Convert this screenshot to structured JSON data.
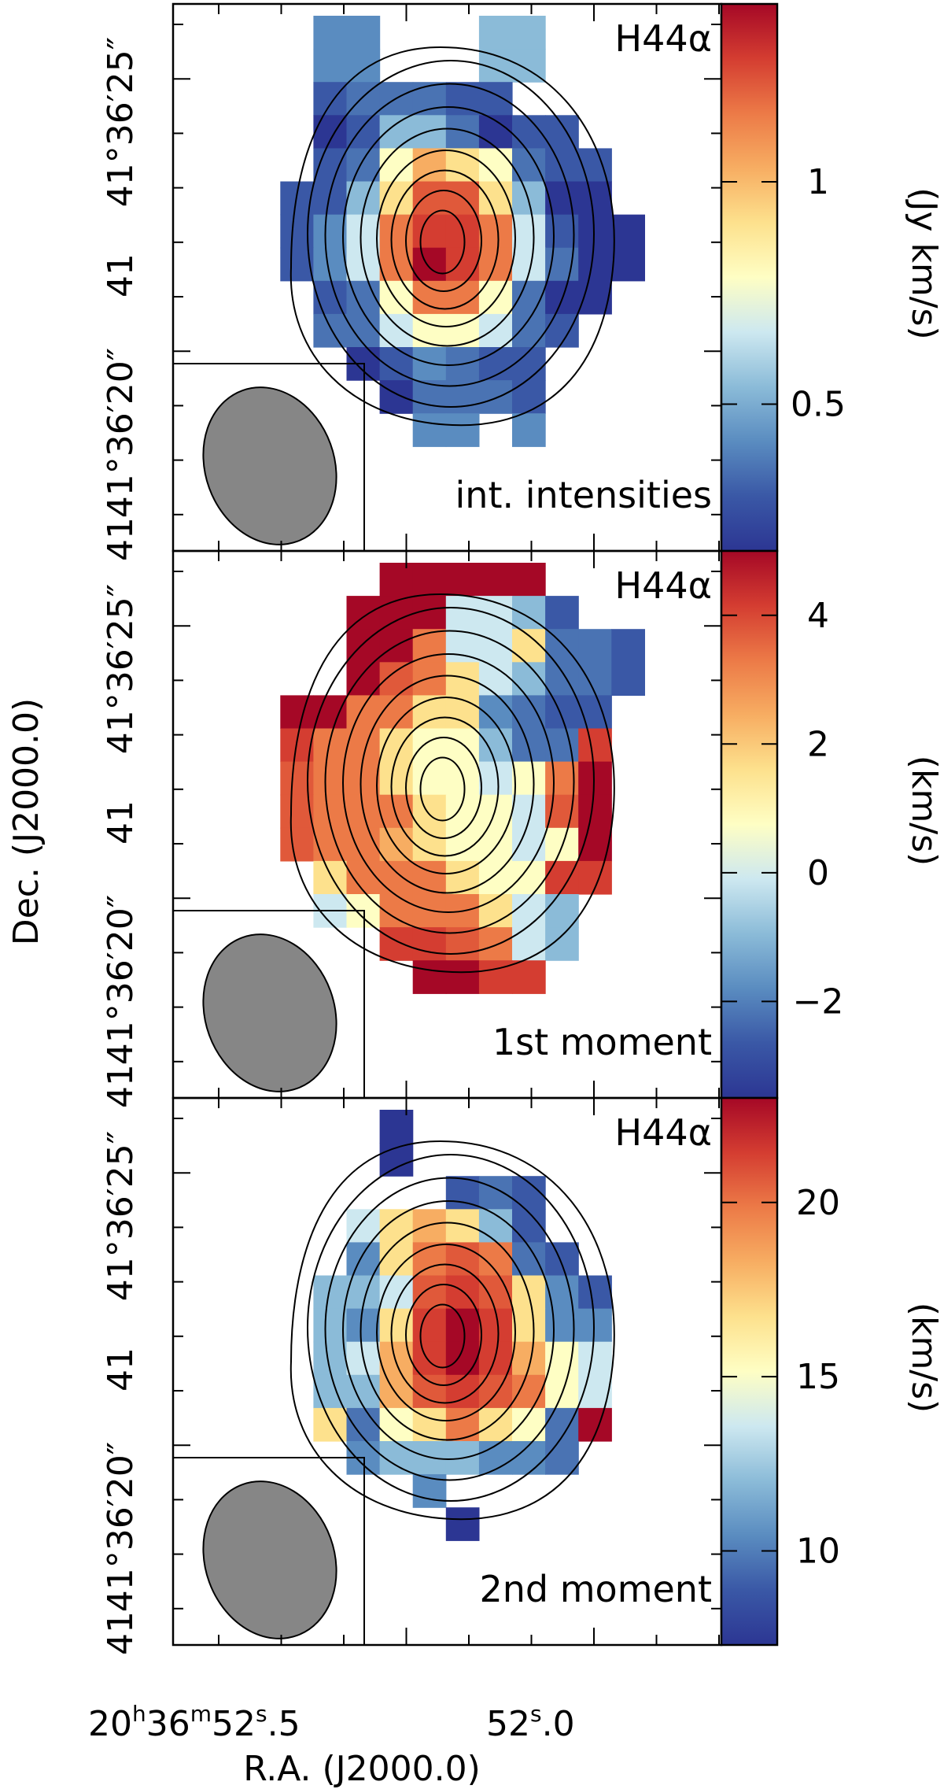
{
  "chart_data": {
    "type": "heatmap",
    "xlabel": "R.A. (J2000.0)",
    "ylabel": "Dec. (J2000.0)",
    "x_ticks": [
      {
        "value": 52.5,
        "prefix": "20",
        "h": "h",
        "m": "36",
        "mu": "m",
        "sec": "52",
        "su": "s",
        "frac": ".5"
      },
      {
        "value": 52.0,
        "prefix": "",
        "h": "",
        "m": "",
        "mu": "",
        "sec": "52",
        "su": "s",
        "frac": ".0"
      }
    ],
    "y_ticks": [
      {
        "value": 25,
        "label": "41°36′25″"
      },
      {
        "value": 20,
        "label": "41°36′20″"
      }
    ],
    "panels": [
      {
        "line": "H44α",
        "label": "int. intensities",
        "cbar_label": "(Jy km/s)",
        "cbar_range": [
          0.17,
          1.4
        ],
        "cbar_ticks": [
          {
            "v": 0.5,
            "t": "0.5"
          },
          {
            "v": 1,
            "t": "1"
          }
        ],
        "grid": [
          "....dd...ee...",
          "....dd...ee...",
          "....bcccbb....",
          "....abeecabb..",
          "....bcgihgcbb.",
          "...bbehkkheaa.",
          "...bdfjlljfbaa",
          "...bdfjmljfcaa",
          "....bcgjjgcaa.",
          "....ccfggfcb..",
          ".....abdcbb...",
          "......acccb...",
          ".......dd.d..."
        ]
      },
      {
        "line": "H44α",
        "label": "1st moment",
        "cbar_label": "(km/s)",
        "cbar_range": [
          -3.5,
          5
        ],
        "cbar_ticks": [
          {
            "v": -2,
            "t": "−2"
          },
          {
            "v": 0,
            "t": "0"
          },
          {
            "v": 2,
            "t": "2"
          },
          {
            "v": 4,
            "t": "4"
          }
        ],
        "grid": [
          "......mmmmm...",
          ".....mmmffeb..",
          ".....mmjffhccb",
          ".....mkjhfeccb",
          "...mmjjhhdcbb.",
          "...ljjhggeccl.",
          "...kjjhggfgjm.",
          "...kjjjhggfkm.",
          "...kjjihggfgm.",
          "....hjjjhggll.",
          "....fgjjjhfe..",
          "......llkjfe..",
          ".......mmll..."
        ]
      },
      {
        "line": "H44α",
        "label": "2nd moment",
        "cbar_label": "(km/s)",
        "cbar_range": [
          7.3,
          23
        ],
        "cbar_ticks": [
          {
            "v": 10,
            "t": "10"
          },
          {
            "v": 15,
            "t": "15"
          },
          {
            "v": 20,
            "t": "20"
          }
        ],
        "grid": [
          "......a.......",
          "......a.......",
          "........bcb...",
          ".....fhiheb...",
          ".....dhjkjcb..",
          "....eefklkhdb.",
          "....edhlmlhdd.",
          "....efilmligf.",
          "....eeiklkjgf.",
          "....hcghjhgcm.",
          ".....deeeddc..",
          ".......d......",
          "........a....."
        ]
      }
    ],
    "beam_color": "#868686"
  }
}
